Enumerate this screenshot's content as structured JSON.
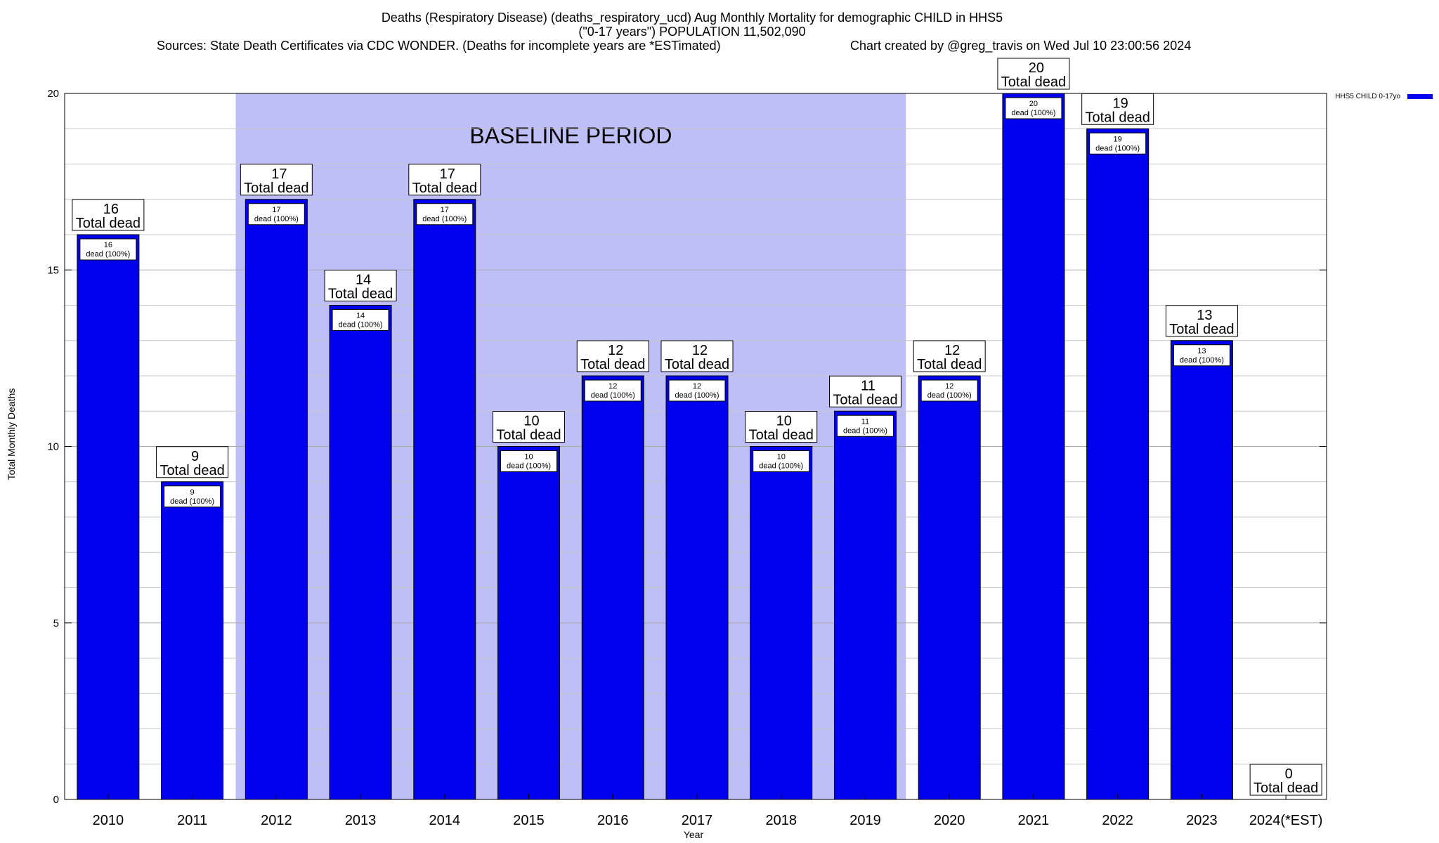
{
  "header": {
    "title_line1": "Deaths (Respiratory Disease) (deaths_respiratory_ucd) Aug Monthly Mortality for demographic CHILD in HHS5",
    "title_line2": "(\"0-17 years\") POPULATION 11,502,090",
    "sources": "Sources: State Death Certificates via CDC WONDER. (Deaths for incomplete years are *ESTimated)",
    "credit": "Chart created by @greg_travis on Wed Jul 10 23:00:56 2024"
  },
  "chart_data": {
    "type": "bar",
    "xlabel": "Year",
    "ylabel": "Total Monthly Deaths",
    "ylim": [
      0,
      20
    ],
    "yticks": [
      0,
      5,
      10,
      15,
      20
    ],
    "grid": true,
    "legend_position": "top-right",
    "baseline_label": "BASELINE PERIOD",
    "baseline_range": [
      "2012",
      "2019"
    ],
    "categories": [
      "2010",
      "2011",
      "2012",
      "2013",
      "2014",
      "2015",
      "2016",
      "2017",
      "2018",
      "2019",
      "2020",
      "2021",
      "2022",
      "2023",
      "2024(*EST)"
    ],
    "series": [
      {
        "name": "HHS5 CHILD 0-17yo",
        "color": "#0000ee",
        "values": [
          16,
          9,
          17,
          14,
          17,
          10,
          12,
          12,
          10,
          11,
          12,
          20,
          19,
          13,
          0
        ]
      }
    ],
    "total_label_suffix": "Total dead",
    "inner_label_text": "dead (100%)",
    "baseline_color": "#bfbff8"
  }
}
